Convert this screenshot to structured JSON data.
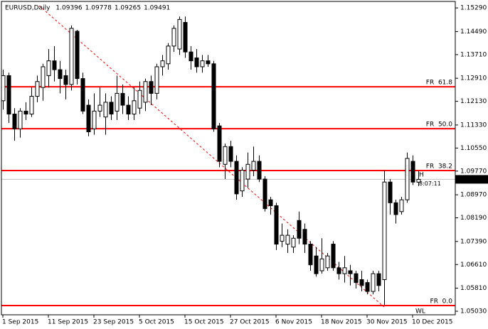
{
  "chart_data": {
    "type": "candlestick",
    "title": "EURUSD,Daily",
    "categories": [
      "1 Sep 2015",
      null,
      null,
      null,
      null,
      null,
      null,
      null,
      "11 Sep 2015",
      null,
      null,
      null,
      null,
      null,
      null,
      null,
      "23 Sep 2015",
      null,
      null,
      null,
      null,
      null,
      null,
      null,
      "5 Oct 2015",
      null,
      null,
      null,
      null,
      null,
      null,
      null,
      "15 Oct 2015",
      null,
      null,
      null,
      null,
      null,
      null,
      null,
      "27 Oct 2015",
      null,
      null,
      null,
      null,
      null,
      null,
      null,
      "6 Nov 2015",
      null,
      null,
      null,
      null,
      null,
      null,
      null,
      "18 Nov 2015",
      null,
      null,
      null,
      null,
      null,
      null,
      null,
      "30 Nov 2015",
      null,
      null,
      null,
      null,
      null,
      null,
      null,
      "10 Dec 2015",
      null
    ],
    "open": [
      1.1215,
      1.13,
      1.117,
      1.112,
      1.118,
      1.117,
      1.123,
      1.126,
      1.13,
      1.135,
      1.132,
      1.13,
      1.127,
      1.145,
      1.129,
      1.12,
      1.112,
      1.118,
      1.116,
      1.121,
      1.118,
      1.124,
      1.12,
      1.117,
      1.119,
      1.121,
      1.128,
      1.124,
      1.133,
      1.134,
      1.14,
      1.139,
      1.148,
      1.138,
      1.136,
      1.133,
      1.135,
      1.134,
      1.113,
      1.1,
      1.106,
      1.101,
      1.091,
      1.095,
      1.098,
      1.101,
      1.095,
      1.088,
      1.086,
      1.074,
      1.073,
      1.072,
      1.081,
      1.078,
      1.073,
      1.069,
      1.064,
      1.065,
      1.073,
      1.065,
      1.063,
      1.064,
      1.063,
      1.061,
      1.06,
      1.057,
      1.063,
      1.061,
      1.094,
      1.087,
      1.084,
      1.088,
      1.101,
      1.09396
    ],
    "high": [
      1.132,
      1.131,
      1.119,
      1.119,
      1.121,
      1.126,
      1.13,
      1.134,
      1.139,
      1.14,
      1.135,
      1.132,
      1.147,
      1.1455,
      1.131,
      1.122,
      1.124,
      1.126,
      1.124,
      1.123,
      1.13,
      1.127,
      1.123,
      1.126,
      1.128,
      1.129,
      1.13,
      1.134,
      1.137,
      1.141,
      1.147,
      1.15,
      1.15,
      1.14,
      1.139,
      1.137,
      1.137,
      1.135,
      1.114,
      1.107,
      1.108,
      1.103,
      1.099,
      1.104,
      1.106,
      1.103,
      1.096,
      1.089,
      1.087,
      1.08,
      1.078,
      1.076,
      1.084,
      1.08,
      1.074,
      1.072,
      1.075,
      1.07,
      1.074,
      1.067,
      1.069,
      1.066,
      1.064,
      1.064,
      1.061,
      1.064,
      1.064,
      1.098,
      1.095,
      1.088,
      1.089,
      1.104,
      1.103,
      1.09778
    ],
    "low": [
      1.1185,
      1.114,
      1.108,
      1.109,
      1.115,
      1.116,
      1.121,
      1.1215,
      1.126,
      1.128,
      1.124,
      1.122,
      1.125,
      1.127,
      1.117,
      1.1095,
      1.11,
      1.116,
      1.11,
      1.115,
      1.115,
      1.117,
      1.115,
      1.115,
      1.117,
      1.118,
      1.12,
      1.122,
      1.13,
      1.132,
      1.138,
      1.137,
      1.136,
      1.132,
      1.131,
      1.131,
      1.133,
      1.111,
      1.099,
      1.095,
      1.099,
      1.088,
      1.089,
      1.092,
      1.096,
      1.094,
      1.084,
      1.083,
      1.071,
      1.072,
      1.07,
      1.07,
      1.073,
      1.07,
      1.064,
      1.062,
      1.063,
      1.064,
      1.064,
      1.061,
      1.06,
      1.059,
      1.058,
      1.057,
      1.056,
      1.056,
      1.057,
      1.0525,
      1.083,
      1.08,
      1.083,
      1.087,
      1.093,
      1.09265
    ],
    "close": [
      1.13,
      1.117,
      1.112,
      1.118,
      1.117,
      1.123,
      1.128,
      1.133,
      1.135,
      1.132,
      1.129,
      1.127,
      1.146,
      1.129,
      1.118,
      1.111,
      1.118,
      1.12,
      1.121,
      1.117,
      1.124,
      1.12,
      1.117,
      1.1215,
      1.125,
      1.128,
      1.124,
      1.133,
      1.135,
      1.14,
      1.146,
      1.149,
      1.138,
      1.135,
      1.133,
      1.135,
      1.134,
      1.112,
      1.101,
      1.106,
      1.101,
      1.09,
      1.098,
      1.1,
      1.101,
      1.095,
      1.085,
      1.086,
      1.073,
      1.076,
      1.076,
      1.075,
      1.075,
      1.073,
      1.066,
      1.063,
      1.068,
      1.069,
      1.065,
      1.063,
      1.065,
      1.063,
      1.06,
      1.059,
      1.057,
      1.063,
      1.059,
      1.094,
      1.087,
      1.083,
      1.088,
      1.102,
      1.094,
      1.09491
    ],
    "up_color": "#ffffff",
    "down_color": "#000000",
    "ylim": [
      1.0491,
      1.1551
    ],
    "yticks": [
      {
        "value": 1.1529,
        "label": "1.15290"
      },
      {
        "value": 1.1449,
        "label": "1.14490"
      },
      {
        "value": 1.1371,
        "label": "1.13710"
      },
      {
        "value": 1.1291,
        "label": "1.12910"
      },
      {
        "value": 1.1213,
        "label": "1.12130"
      },
      {
        "value": 1.1133,
        "label": "1.11330"
      },
      {
        "value": 1.1055,
        "label": "1.10550"
      },
      {
        "value": 1.0977,
        "label": "1.09770"
      },
      {
        "value": 1.0897,
        "label": "1.08970"
      },
      {
        "value": 1.0819,
        "label": "1.08190"
      },
      {
        "value": 1.0739,
        "label": "1.07390"
      },
      {
        "value": 1.0661,
        "label": "1.06610"
      },
      {
        "value": 1.0581,
        "label": "1.05810"
      },
      {
        "value": 1.0503,
        "label": "1.05030"
      }
    ],
    "fib_color": "#ff0000",
    "fib_levels": [
      {
        "label": "FR  61.8",
        "value": 1.12623
      },
      {
        "label": "FR  50.0",
        "value": 1.11205
      },
      {
        "label": "FR  38.2",
        "value": 1.09788
      },
      {
        "label": "FR  0.0",
        "value": 1.05222
      }
    ],
    "timer": "8:07:11",
    "marker_high": "H",
    "marker_low": "WL"
  }
}
